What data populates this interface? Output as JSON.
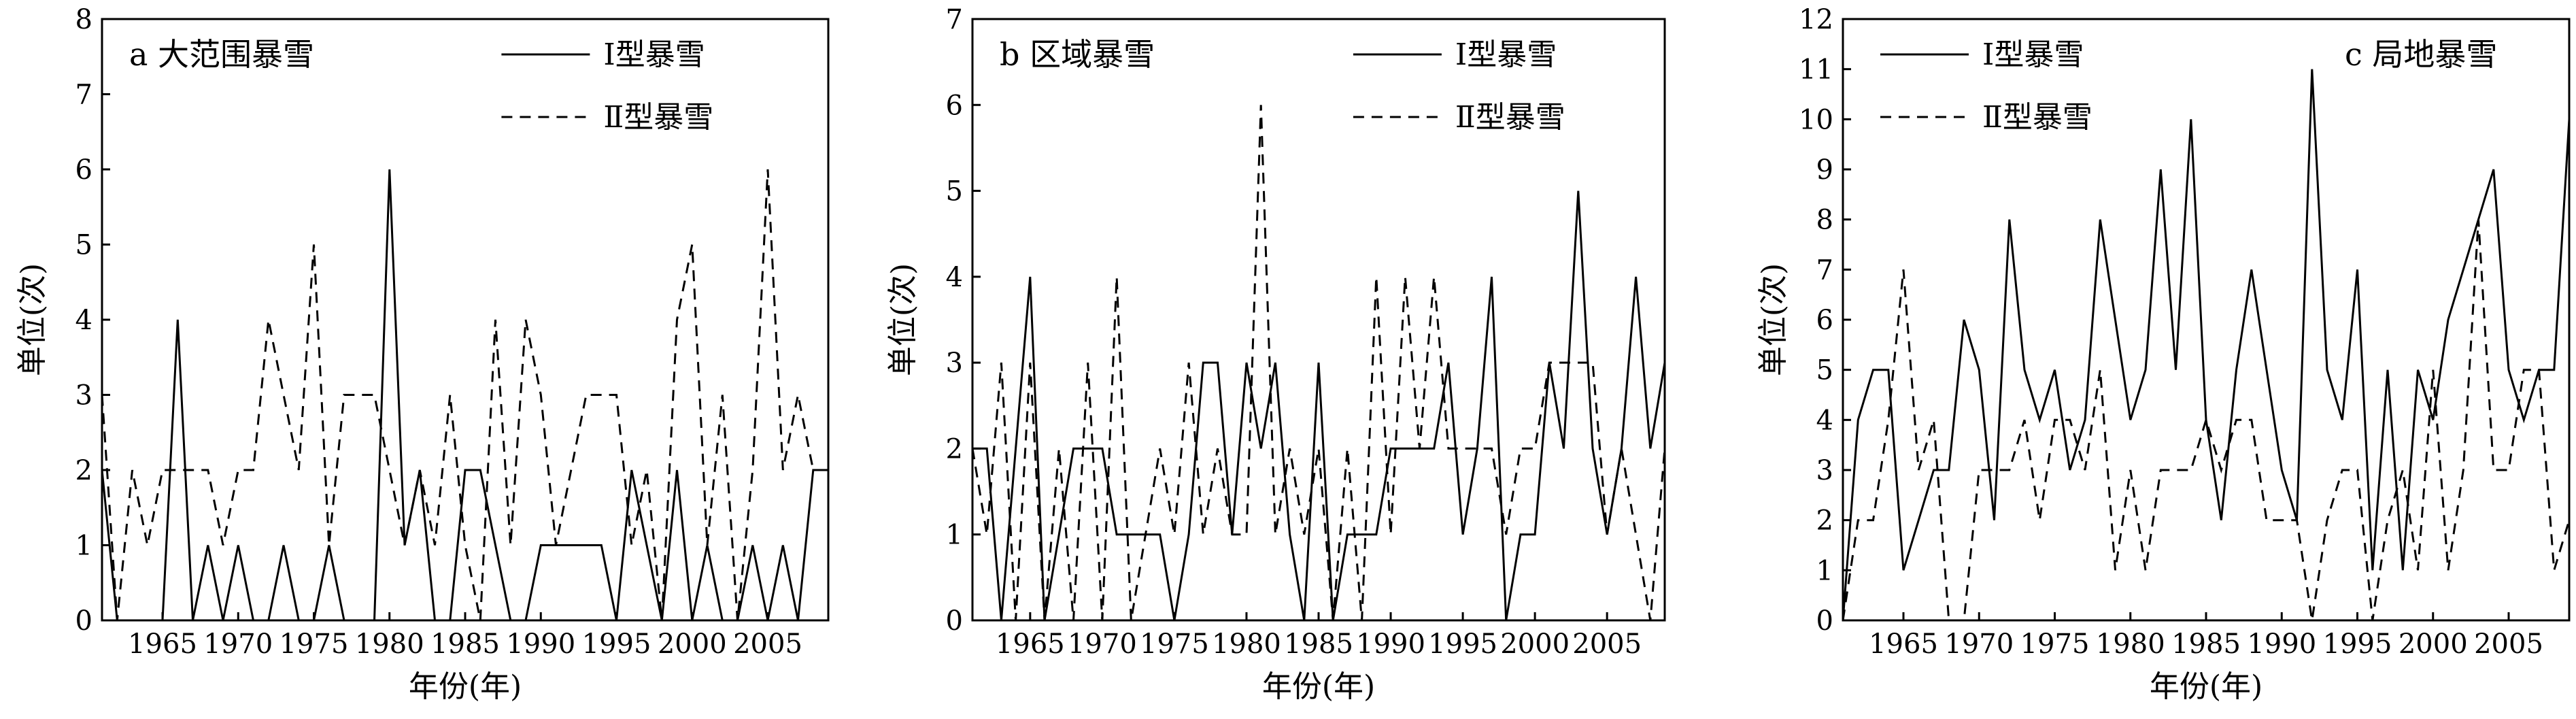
{
  "chart_data": [
    {
      "type": "line",
      "panel_label": "a 大范围暴雪",
      "xlabel": "年份(年)",
      "ylabel": "单位(次)",
      "xlim": [
        1961,
        2009
      ],
      "ylim": [
        0,
        8
      ],
      "yticks": [
        0,
        1,
        2,
        3,
        4,
        5,
        6,
        7,
        8
      ],
      "xticks": [
        1965,
        1970,
        1975,
        1980,
        1985,
        1990,
        1995,
        2000,
        2005
      ],
      "xtick_labels": [
        "1965",
        "1970",
        "1975",
        "1980",
        "1985",
        "1990",
        "1995",
        "2000",
        "2005"
      ],
      "legend_position": "top-right",
      "series": [
        {
          "name": "Ⅰ型暴雪",
          "style": "solid",
          "x": [
            1961,
            1962,
            1963,
            1964,
            1965,
            1966,
            1967,
            1968,
            1969,
            1970,
            1971,
            1972,
            1973,
            1974,
            1975,
            1976,
            1977,
            1978,
            1979,
            1980,
            1981,
            1982,
            1983,
            1984,
            1985,
            1986,
            1987,
            1988,
            1989,
            1990,
            1991,
            1992,
            1993,
            1994,
            1995,
            1996,
            1997,
            1998,
            1999,
            2000,
            2001,
            2002,
            2003,
            2004,
            2005,
            2006,
            2007,
            2008,
            2009
          ],
          "values": [
            2,
            0,
            0,
            0,
            0,
            4,
            0,
            1,
            0,
            1,
            0,
            0,
            1,
            0,
            0,
            1,
            0,
            0,
            0,
            6,
            1,
            2,
            0,
            0,
            2,
            2,
            1,
            0,
            0,
            1,
            1,
            1,
            1,
            1,
            0,
            2,
            1,
            0,
            2,
            0,
            1,
            0,
            0,
            1,
            0,
            1,
            0,
            2,
            2
          ]
        },
        {
          "name": "Ⅱ型暴雪",
          "style": "dashed",
          "x": [
            1961,
            1962,
            1963,
            1964,
            1965,
            1966,
            1967,
            1968,
            1969,
            1970,
            1971,
            1972,
            1973,
            1974,
            1975,
            1976,
            1977,
            1978,
            1979,
            1980,
            1981,
            1982,
            1983,
            1984,
            1985,
            1986,
            1987,
            1988,
            1989,
            1990,
            1991,
            1992,
            1993,
            1994,
            1995,
            1996,
            1997,
            1998,
            1999,
            2000,
            2001,
            2002,
            2003,
            2004,
            2005,
            2006,
            2007,
            2008,
            2009
          ],
          "values": [
            3,
            0,
            2,
            1,
            2,
            2,
            2,
            2,
            1,
            2,
            2,
            4,
            3,
            2,
            5,
            1,
            3,
            3,
            3,
            2,
            1,
            2,
            1,
            3,
            1,
            0,
            4,
            1,
            4,
            3,
            1,
            2,
            3,
            3,
            3,
            1,
            2,
            0,
            4,
            5,
            1,
            3,
            0,
            2,
            6,
            2,
            3,
            2,
            2
          ]
        }
      ]
    },
    {
      "type": "line",
      "panel_label": "b 区域暴雪",
      "xlabel": "年份(年)",
      "ylabel": "单位(次)",
      "xlim": [
        1961,
        2009
      ],
      "ylim": [
        0,
        7
      ],
      "yticks": [
        0,
        1,
        2,
        3,
        4,
        5,
        6,
        7
      ],
      "xticks": [
        1965,
        1970,
        1975,
        1980,
        1985,
        1990,
        1995,
        2000,
        2005
      ],
      "xtick_labels": [
        "1965",
        "1970",
        "1975",
        "1980",
        "1985",
        "1990",
        "1995",
        "2000",
        "2005"
      ],
      "legend_position": "top-right",
      "series": [
        {
          "name": "Ⅰ型暴雪",
          "style": "solid",
          "x": [
            1961,
            1962,
            1963,
            1964,
            1965,
            1966,
            1967,
            1968,
            1969,
            1970,
            1971,
            1972,
            1973,
            1974,
            1975,
            1976,
            1977,
            1978,
            1979,
            1980,
            1981,
            1982,
            1983,
            1984,
            1985,
            1986,
            1987,
            1988,
            1989,
            1990,
            1991,
            1992,
            1993,
            1994,
            1995,
            1996,
            1997,
            1998,
            1999,
            2000,
            2001,
            2002,
            2003,
            2004,
            2005,
            2006,
            2007,
            2008,
            2009
          ],
          "values": [
            2,
            2,
            0,
            2,
            4,
            0,
            1,
            2,
            2,
            2,
            1,
            1,
            1,
            1,
            0,
            1,
            3,
            3,
            1,
            3,
            2,
            3,
            1,
            0,
            3,
            0,
            1,
            1,
            1,
            2,
            2,
            2,
            2,
            3,
            1,
            2,
            4,
            0,
            1,
            1,
            3,
            2,
            5,
            2,
            1,
            2,
            4,
            2,
            3
          ]
        },
        {
          "name": "Ⅱ型暴雪",
          "style": "dashed",
          "x": [
            1961,
            1962,
            1963,
            1964,
            1965,
            1966,
            1967,
            1968,
            1969,
            1970,
            1971,
            1972,
            1973,
            1974,
            1975,
            1976,
            1977,
            1978,
            1979,
            1980,
            1981,
            1982,
            1983,
            1984,
            1985,
            1986,
            1987,
            1988,
            1989,
            1990,
            1991,
            1992,
            1993,
            1994,
            1995,
            1996,
            1997,
            1998,
            1999,
            2000,
            2001,
            2002,
            2003,
            2004,
            2005,
            2006,
            2007,
            2008,
            2009
          ],
          "values": [
            2,
            1,
            3,
            0,
            3,
            0,
            2,
            0,
            3,
            0,
            4,
            0,
            1,
            2,
            1,
            3,
            1,
            2,
            1,
            1,
            6,
            1,
            2,
            1,
            2,
            0,
            2,
            0,
            4,
            1,
            4,
            2,
            4,
            2,
            2,
            2,
            2,
            1,
            2,
            2,
            3,
            3,
            3,
            3,
            1,
            2,
            1,
            0,
            2
          ]
        }
      ]
    },
    {
      "type": "line",
      "panel_label": "c 局地暴雪",
      "xlabel": "年份(年)",
      "ylabel": "单位(次)",
      "xlim": [
        1961,
        2009
      ],
      "ylim": [
        0,
        12
      ],
      "yticks": [
        0,
        1,
        2,
        3,
        4,
        5,
        6,
        7,
        8,
        9,
        10,
        11,
        12
      ],
      "xticks": [
        1965,
        1970,
        1975,
        1980,
        1985,
        1990,
        1995,
        2000,
        2005
      ],
      "xtick_labels": [
        "1965",
        "1970",
        "1975",
        "1980",
        "1985",
        "1990",
        "1995",
        "2000",
        "2005"
      ],
      "legend_position": "top-left",
      "series": [
        {
          "name": "Ⅰ型暴雪",
          "style": "solid",
          "x": [
            1961,
            1962,
            1963,
            1964,
            1965,
            1966,
            1967,
            1968,
            1969,
            1970,
            1971,
            1972,
            1973,
            1974,
            1975,
            1976,
            1977,
            1978,
            1979,
            1980,
            1981,
            1982,
            1983,
            1984,
            1985,
            1986,
            1987,
            1988,
            1989,
            1990,
            1991,
            1992,
            1993,
            1994,
            1995,
            1996,
            1997,
            1998,
            1999,
            2000,
            2001,
            2002,
            2003,
            2004,
            2005,
            2006,
            2007,
            2008,
            2009
          ],
          "values": [
            0,
            4,
            5,
            5,
            1,
            2,
            3,
            3,
            6,
            5,
            2,
            8,
            5,
            4,
            5,
            3,
            4,
            8,
            6,
            4,
            5,
            9,
            5,
            10,
            4,
            2,
            5,
            7,
            5,
            3,
            2,
            11,
            5,
            4,
            7,
            1,
            5,
            1,
            5,
            4,
            6,
            7,
            8,
            9,
            5,
            4,
            5,
            5,
            10
          ]
        },
        {
          "name": "Ⅱ型暴雪",
          "style": "dashed",
          "x": [
            1961,
            1962,
            1963,
            1964,
            1965,
            1966,
            1967,
            1968,
            1969,
            1970,
            1971,
            1972,
            1973,
            1974,
            1975,
            1976,
            1977,
            1978,
            1979,
            1980,
            1981,
            1982,
            1983,
            1984,
            1985,
            1986,
            1987,
            1988,
            1989,
            1990,
            1991,
            1992,
            1993,
            1994,
            1995,
            1996,
            1997,
            1998,
            1999,
            2000,
            2001,
            2002,
            2003,
            2004,
            2005,
            2006,
            2007,
            2008,
            2009
          ],
          "values": [
            0,
            2,
            2,
            4,
            7,
            3,
            4,
            0,
            0,
            3,
            3,
            3,
            4,
            2,
            4,
            4,
            3,
            5,
            1,
            3,
            1,
            3,
            3,
            3,
            4,
            3,
            4,
            4,
            2,
            2,
            2,
            0,
            2,
            3,
            3,
            0,
            2,
            3,
            1,
            5,
            1,
            3,
            8,
            3,
            3,
            5,
            5,
            1,
            2
          ]
        }
      ]
    }
  ]
}
